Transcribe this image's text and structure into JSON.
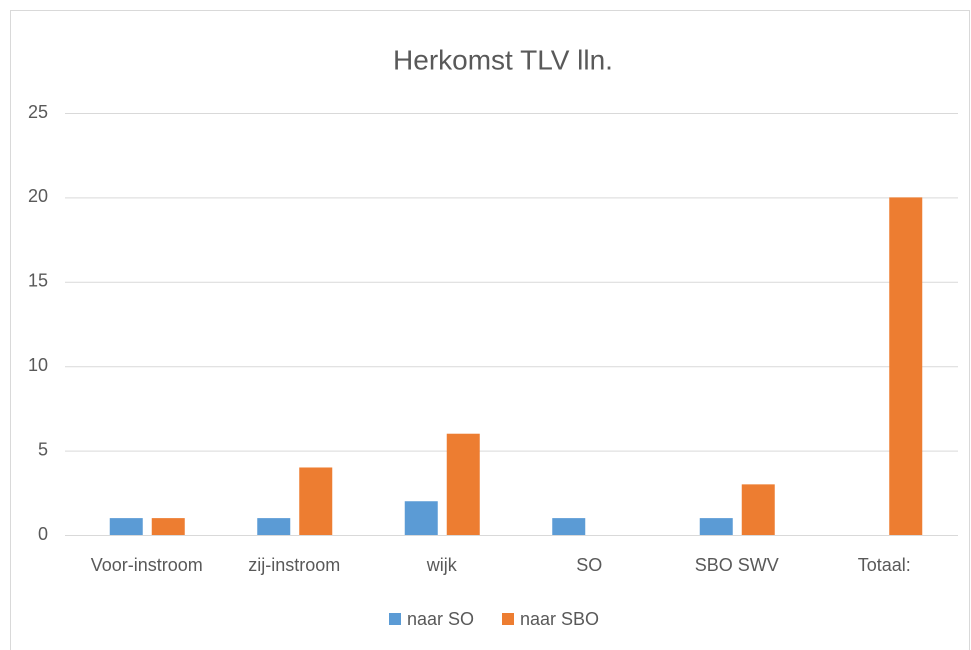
{
  "chart_data": {
    "type": "bar",
    "title": "Herkomst TLV lln.",
    "categories": [
      "Voor-instroom",
      "zij-instroom",
      "wijk",
      "SO",
      "SBO SWV",
      "Totaal:"
    ],
    "series": [
      {
        "name": "naar SO",
        "color": "#5b9bd5",
        "values": [
          1,
          1,
          2,
          1,
          1,
          0
        ]
      },
      {
        "name": "naar SBO",
        "color": "#ed7d31",
        "values": [
          1,
          4,
          6,
          0,
          3,
          20
        ]
      }
    ],
    "ylim": [
      0,
      25
    ],
    "yticks": [
      0,
      5,
      10,
      15,
      20,
      25
    ],
    "grid": true,
    "legend": "bottom"
  }
}
